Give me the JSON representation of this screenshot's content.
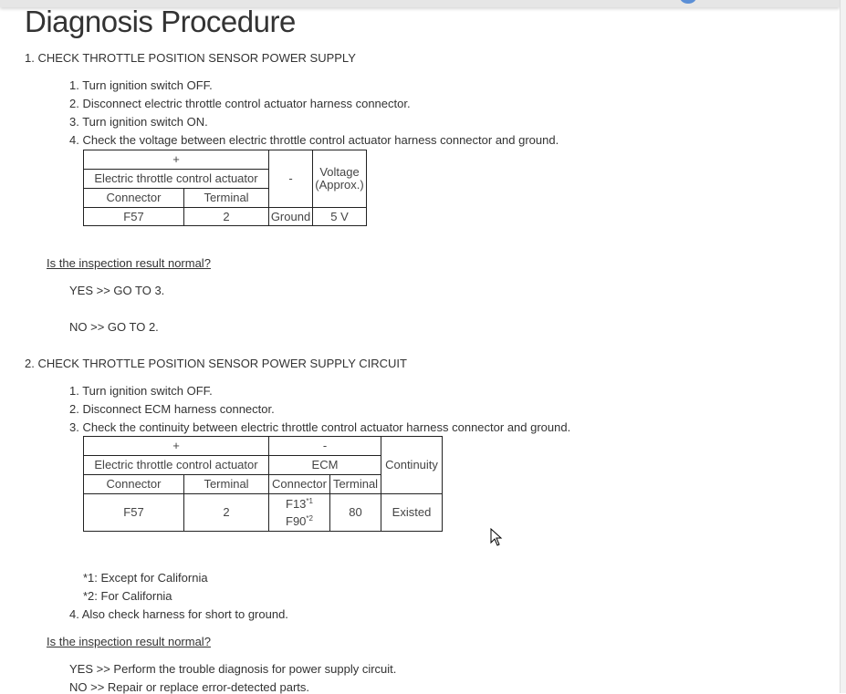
{
  "title": "Diagnosis Procedure",
  "s1": {
    "heading": "1. CHECK THROTTLE POSITION SENSOR POWER SUPPLY",
    "steps": [
      "1. Turn ignition switch OFF.",
      "2. Disconnect electric throttle control actuator harness connector.",
      "3. Turn ignition switch ON.",
      "4. Check the voltage between electric throttle control actuator harness connector and ground."
    ],
    "table": {
      "plus": "+",
      "minus": "-",
      "component": "Electric throttle control actuator",
      "voltage": "Voltage (Approx.)",
      "connector": "Connector",
      "terminal": "Terminal",
      "row": {
        "connector": "F57",
        "terminal": "2",
        "minus": "Ground",
        "voltage": "5 V"
      }
    },
    "question": "Is the inspection result normal?",
    "yes": "YES >> GO TO 3.",
    "no": "NO >> GO TO 2."
  },
  "s2": {
    "heading": "2. CHECK THROTTLE POSITION SENSOR POWER SUPPLY CIRCUIT",
    "steps": [
      "1. Turn ignition switch OFF.",
      "2. Disconnect ECM harness connector.",
      "3. Check the continuity between electric throttle control actuator harness connector and ground.",
      "4. Also check harness for short to ground."
    ],
    "table": {
      "plus": "+",
      "minus": "-",
      "component": "Electric throttle control actuator",
      "ecm": "ECM",
      "continuity": "Continuity",
      "connector": "Connector",
      "terminal": "Terminal",
      "row": {
        "connector": "F57",
        "terminal": "2",
        "ecm_connector_1": "F13",
        "note_1": "*1",
        "ecm_connector_2": "F90",
        "note_2": "*2",
        "ecm_terminal": "80",
        "continuity": "Existed"
      }
    },
    "notes": [
      "*1: Except for California",
      "*2: For California"
    ],
    "question": "Is the inspection result normal?",
    "yes": "YES >> Perform the trouble diagnosis for power supply circuit.",
    "no": "NO >> Repair or replace error-detected parts."
  }
}
